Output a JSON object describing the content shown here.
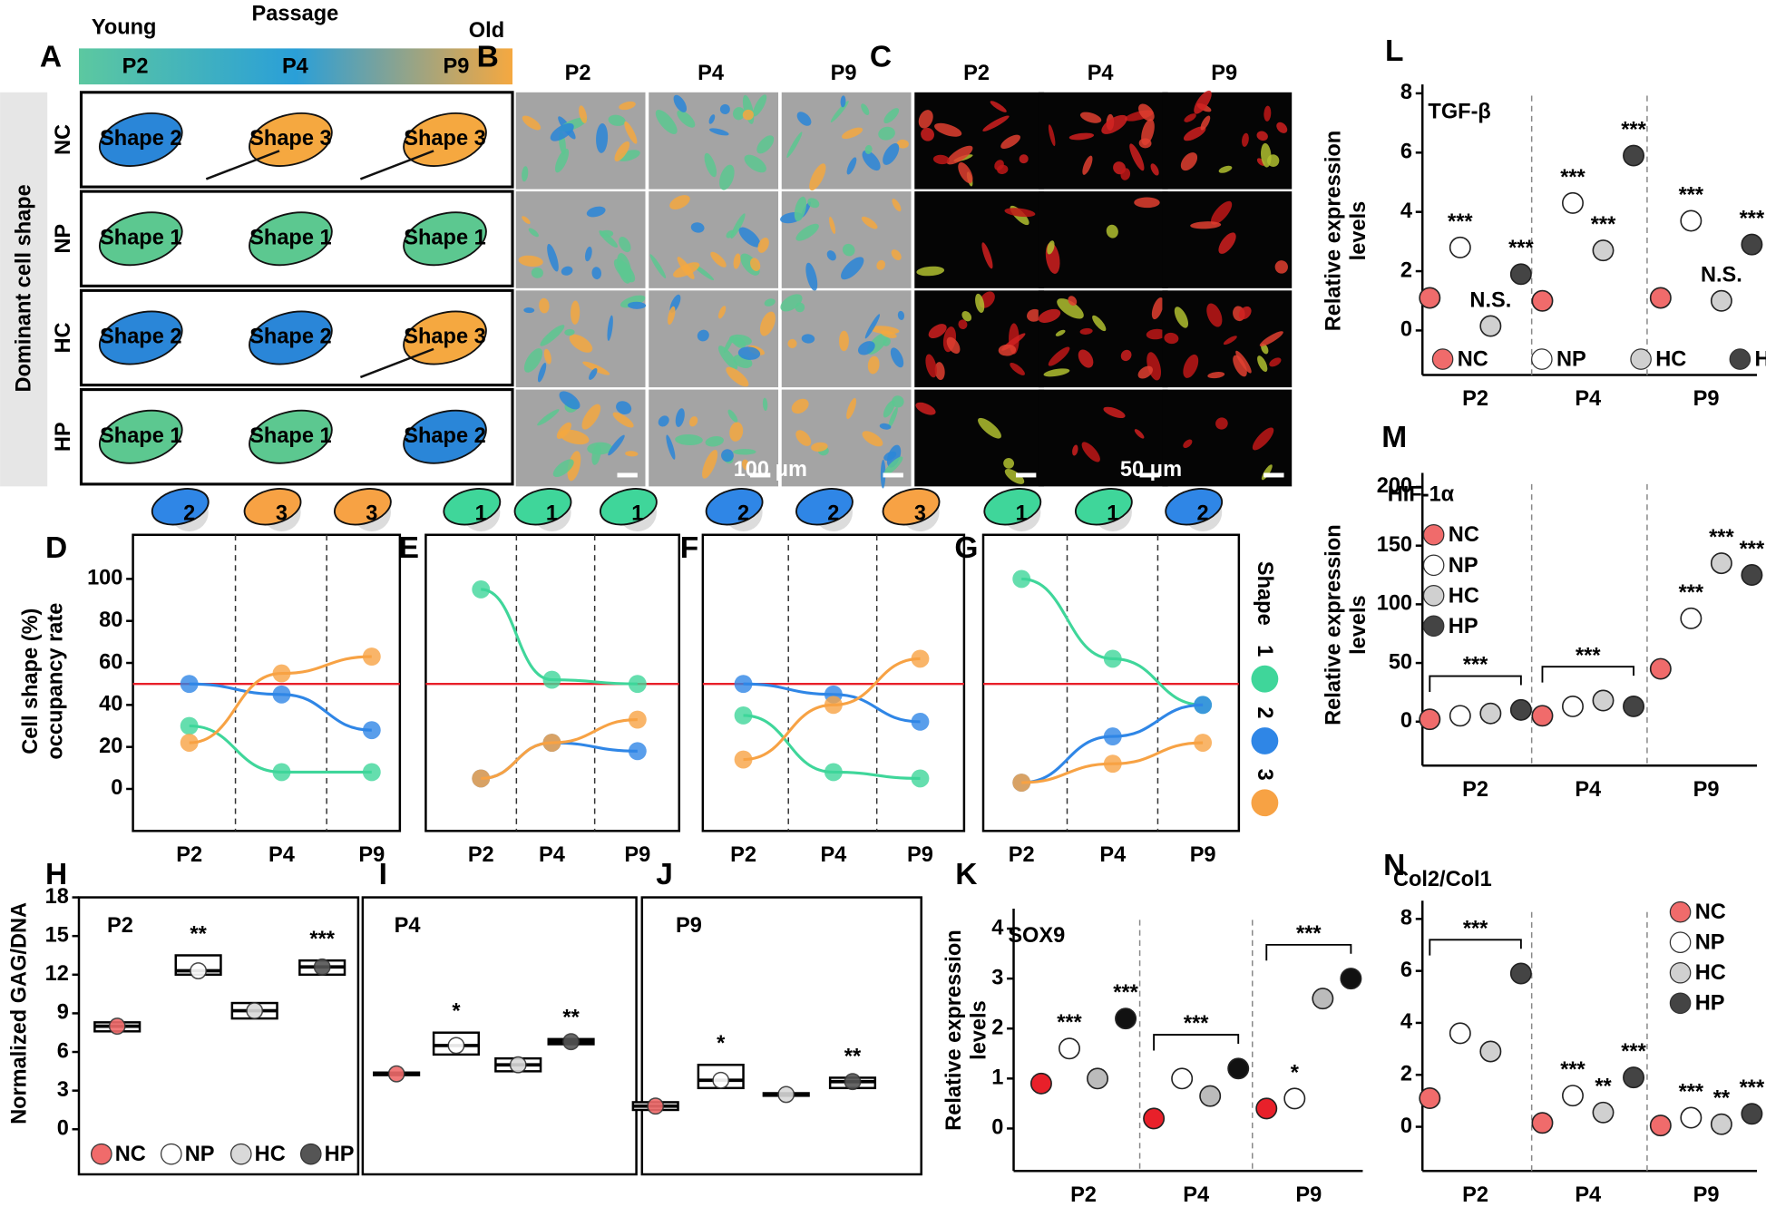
{
  "panel_a": {
    "letter": "A",
    "title": "Passage",
    "young": "Young",
    "old": "Old",
    "passages": [
      "P2",
      "P4",
      "P9"
    ],
    "y_label": "Dominant cell shape",
    "rows": [
      {
        "label": "NC",
        "shapes": [
          "Shape 2",
          "Shape 3",
          "Shape 3"
        ]
      },
      {
        "label": "NP",
        "shapes": [
          "Shape 1",
          "Shape 1",
          "Shape 1"
        ]
      },
      {
        "label": "HC",
        "shapes": [
          "Shape 2",
          "Shape 2",
          "Shape 3"
        ]
      },
      {
        "label": "HP",
        "shapes": [
          "Shape 1",
          "Shape 1",
          "Shape 2"
        ]
      }
    ]
  },
  "panel_b": {
    "letter": "B",
    "passages": [
      "P2",
      "P4",
      "P9"
    ],
    "scale_bar": "100 μm"
  },
  "panel_c": {
    "letter": "C",
    "passages": [
      "P2",
      "P4",
      "P9"
    ],
    "scale_bar": "50 μm"
  },
  "chart_data": [
    {
      "panel": "D",
      "type": "line",
      "categories": [
        "P2",
        "P4",
        "P9"
      ],
      "ylim": [
        -20,
        121
      ],
      "yticks": [
        0,
        20,
        40,
        60,
        80,
        100
      ],
      "ylabel": [
        "Cell shape  (%)",
        "occupancy rate"
      ],
      "reference_line": 50,
      "reference_color": "#e8202a",
      "shape_icons": [
        "2",
        "3",
        "3"
      ],
      "series": [
        {
          "color": "#3fd69a",
          "values": [
            30,
            8,
            8
          ]
        },
        {
          "color": "#2f86e6",
          "values": [
            50,
            45,
            28
          ]
        },
        {
          "color": "#f7a244",
          "values": [
            22,
            55,
            63
          ]
        }
      ]
    },
    {
      "panel": "E",
      "type": "line",
      "categories": [
        "P2",
        "P4",
        "P9"
      ],
      "ylim": [
        -20,
        121
      ],
      "reference_line": 50,
      "reference_color": "#e8202a",
      "shape_icons": [
        "1",
        "1",
        "1"
      ],
      "series": [
        {
          "color": "#3fd69a",
          "values": [
            95,
            52,
            50
          ]
        },
        {
          "color": "#2f86e6",
          "values": [
            5,
            22,
            18
          ]
        },
        {
          "color": "#f7a244",
          "values": [
            5,
            22,
            33
          ]
        }
      ]
    },
    {
      "panel": "F",
      "type": "line",
      "categories": [
        "P2",
        "P4",
        "P9"
      ],
      "ylim": [
        -20,
        121
      ],
      "reference_line": 50,
      "reference_color": "#e8202a",
      "shape_icons": [
        "2",
        "2",
        "3"
      ],
      "series": [
        {
          "color": "#3fd69a",
          "values": [
            35,
            8,
            5
          ]
        },
        {
          "color": "#2f86e6",
          "values": [
            50,
            45,
            32
          ]
        },
        {
          "color": "#f7a244",
          "values": [
            14,
            40,
            62
          ]
        }
      ]
    },
    {
      "panel": "G",
      "type": "line",
      "categories": [
        "P2",
        "P4",
        "P9"
      ],
      "ylim": [
        -20,
        121
      ],
      "reference_line": 50,
      "reference_color": "#e8202a",
      "shape_icons": [
        "1",
        "1",
        "2"
      ],
      "legend_title": "Shape",
      "series": [
        {
          "name": "1",
          "color": "#3fd69a",
          "values": [
            100,
            62,
            40
          ]
        },
        {
          "name": "2",
          "color": "#2f86e6",
          "values": [
            3,
            25,
            40
          ]
        },
        {
          "name": "3",
          "color": "#f7a244",
          "values": [
            3,
            12,
            22
          ]
        }
      ]
    },
    {
      "panel": "H",
      "type": "box",
      "title": "P2",
      "ylabel": "Normalized GAG/DNA",
      "ylim": [
        -3.5,
        18
      ],
      "yticks": [
        0,
        3,
        6,
        9,
        12,
        15,
        18
      ],
      "categories": [
        "NC",
        "NP",
        "HC",
        "HP"
      ],
      "legend": "bottom",
      "colors": [
        "#f06b6b",
        "#ffffff",
        "#d9d9d9",
        "#555555"
      ],
      "q1": [
        7.6,
        12.0,
        8.6,
        12.0
      ],
      "median": [
        8.0,
        12.3,
        9.2,
        12.6
      ],
      "q3": [
        8.3,
        13.5,
        9.8,
        13.1
      ],
      "significance": [
        null,
        "**",
        null,
        "***"
      ]
    },
    {
      "panel": "I",
      "type": "box",
      "title": "P4",
      "ylim": [
        -3.5,
        18
      ],
      "colors": [
        "#f06b6b",
        "#ffffff",
        "#d9d9d9",
        "#555555"
      ],
      "q1": [
        4.2,
        5.8,
        4.5,
        6.6
      ],
      "median": [
        4.3,
        6.5,
        5.0,
        6.8
      ],
      "q3": [
        4.4,
        7.5,
        5.5,
        7.0
      ],
      "significance": [
        null,
        "*",
        null,
        "**"
      ]
    },
    {
      "panel": "J",
      "type": "box",
      "title": "P9",
      "ylim": [
        -3.5,
        18
      ],
      "colors": [
        "#f06b6b",
        "#ffffff",
        "#d9d9d9",
        "#555555"
      ],
      "q1": [
        1.5,
        3.2,
        2.6,
        3.2
      ],
      "median": [
        1.8,
        3.8,
        2.7,
        3.7
      ],
      "q3": [
        2.1,
        5.0,
        2.8,
        4.0
      ],
      "significance": [
        null,
        "*",
        null,
        "**"
      ]
    },
    {
      "panel": "K",
      "type": "dot",
      "title": "SOX9",
      "ylabel": [
        "Relative expression",
        "levels"
      ],
      "categories": [
        "P2",
        "P4",
        "P9"
      ],
      "ylim": [
        -0.85,
        4.4
      ],
      "yticks": [
        0,
        1,
        2,
        3,
        4
      ],
      "bracket_labels": [
        null,
        "***",
        "***"
      ],
      "series": [
        {
          "color": "#e8202a",
          "values": [
            0.9,
            0.2,
            0.4
          ]
        },
        {
          "color": "#ffffff",
          "values": [
            1.6,
            1.0,
            0.6
          ],
          "significance": [
            "***",
            null,
            "*"
          ]
        },
        {
          "color": "#bbbbbb",
          "values": [
            1.0,
            0.65,
            2.6
          ]
        },
        {
          "color": "#111111",
          "values": [
            2.2,
            1.2,
            3.0
          ],
          "significance": [
            "***",
            null,
            null
          ]
        }
      ]
    },
    {
      "panel": "L",
      "type": "dot",
      "title": "TGF-β",
      "ylabel": [
        "Relative expression",
        "levels"
      ],
      "categories": [
        "P2",
        "P4",
        "P9"
      ],
      "ylim": [
        -1.5,
        8.3
      ],
      "yticks": [
        0,
        2,
        4,
        6,
        8
      ],
      "legend": "bottom",
      "series": [
        {
          "name": "NC",
          "color": "#f06b6b",
          "values": [
            1.1,
            1.0,
            1.1
          ]
        },
        {
          "name": "NP",
          "color": "#ffffff",
          "values": [
            2.8,
            4.3,
            3.7
          ],
          "significance": [
            "***",
            "***",
            "***"
          ]
        },
        {
          "name": "HC",
          "color": "#d0d0d0",
          "values": [
            0.15,
            2.7,
            1.0
          ],
          "significance": [
            "N.S.",
            "***",
            "N.S."
          ]
        },
        {
          "name": "HP",
          "color": "#444444",
          "values": [
            1.9,
            5.9,
            2.9
          ],
          "significance": [
            "***",
            "***",
            "***"
          ]
        }
      ]
    },
    {
      "panel": "M",
      "type": "dot",
      "title": "HIF-1α",
      "ylabel": [
        "Relative expression",
        "levels"
      ],
      "categories": [
        "P2",
        "P4",
        "P9"
      ],
      "ylim": [
        -37.5,
        212
      ],
      "yticks": [
        0,
        50,
        100,
        150,
        200
      ],
      "legend": "upper left",
      "bracket_labels": [
        "***",
        "***",
        null
      ],
      "series": [
        {
          "name": "NC",
          "color": "#f06b6b",
          "values": [
            2,
            5,
            45
          ]
        },
        {
          "name": "NP",
          "color": "#ffffff",
          "values": [
            5,
            13,
            88
          ],
          "significance": [
            null,
            null,
            "***"
          ]
        },
        {
          "name": "HC",
          "color": "#d0d0d0",
          "values": [
            7,
            18,
            135
          ],
          "significance": [
            null,
            null,
            "***"
          ]
        },
        {
          "name": "HP",
          "color": "#444444",
          "values": [
            10,
            13,
            125
          ],
          "significance": [
            null,
            null,
            "***"
          ]
        }
      ]
    },
    {
      "panel": "N",
      "type": "dot",
      "title": "Col2/Col1",
      "categories": [
        "P2",
        "P4",
        "P9"
      ],
      "ylim": [
        -1.7,
        8.7
      ],
      "yticks": [
        0,
        2,
        4,
        6,
        8
      ],
      "legend": "upper right",
      "bracket_labels": [
        "***",
        null,
        null
      ],
      "series": [
        {
          "name": "NC",
          "color": "#f06b6b",
          "values": [
            1.1,
            0.15,
            0.05
          ]
        },
        {
          "name": "NP",
          "color": "#ffffff",
          "values": [
            3.6,
            1.2,
            0.35
          ],
          "significance": [
            null,
            "***",
            "***"
          ]
        },
        {
          "name": "HC",
          "color": "#d0d0d0",
          "values": [
            2.9,
            0.55,
            0.1
          ],
          "significance": [
            null,
            "**",
            "**"
          ]
        },
        {
          "name": "HP",
          "color": "#444444",
          "values": [
            5.9,
            1.9,
            0.5
          ],
          "significance": [
            null,
            "***",
            "***"
          ]
        }
      ]
    }
  ]
}
